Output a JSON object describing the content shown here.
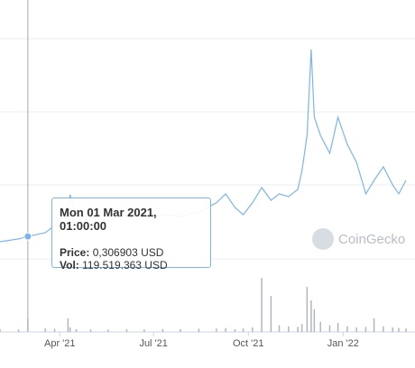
{
  "chart_data": {
    "type": "line",
    "x": [
      32,
      50,
      59,
      76,
      85,
      98,
      100,
      106,
      120,
      137,
      155,
      172,
      190,
      207,
      225,
      242,
      251,
      260,
      268,
      277,
      286,
      295,
      303,
      312,
      321,
      325,
      330,
      334,
      337,
      343,
      352,
      360,
      369,
      378,
      387,
      395,
      404,
      413,
      419,
      426
    ],
    "series": [
      {
        "color": "#7cb5ec",
        "values": [
          0.29,
          0.299,
          0.306903,
          0.319,
          0.342,
          0.394,
          0.441,
          0.371,
          0.371,
          0.357,
          0.377,
          0.371,
          0.377,
          0.371,
          0.386,
          0.415,
          0.444,
          0.4,
          0.377,
          0.415,
          0.464,
          0.423,
          0.444,
          0.435,
          0.458,
          0.516,
          0.632,
          0.908,
          0.69,
          0.632,
          0.574,
          0.69,
          0.603,
          0.545,
          0.444,
          0.487,
          0.531,
          0.473,
          0.444,
          0.487
        ]
      },
      {
        "color": "#b0b6c0",
        "axis": "y2",
        "values": [
          25000000,
          22000000,
          119519363,
          30000000,
          28000000,
          120000000,
          40000000,
          25000000,
          22000000,
          20000000,
          24000000,
          22000000,
          26000000,
          24000000,
          28000000,
          30000000,
          35000000,
          25000000,
          30000000,
          40000000,
          480000000,
          320000000,
          60000000,
          50000000,
          45000000,
          70000000,
          400000000,
          280000000,
          200000000,
          90000000,
          60000000,
          80000000,
          50000000,
          40000000,
          45000000,
          120000000,
          50000000,
          40000000,
          35000000,
          30000000
        ]
      }
    ],
    "xlim": [
      32,
      426
    ],
    "xticks": [
      {
        "value": 90,
        "label": "Apr '21"
      },
      {
        "value": 181,
        "label": "Jul '21"
      },
      {
        "value": 273,
        "label": "Oct '21"
      },
      {
        "value": 365,
        "label": "Jan '22"
      }
    ],
    "ylim": [
      0,
      1.067
    ],
    "y2lim": [
      0,
      2950000000
    ],
    "watermark": "CoinGecko",
    "tooltip": {
      "x_index": 2,
      "date": "Mon 01 Mar 2021, 01:00:00",
      "price_label": "Price:",
      "price": "0,306903 USD",
      "vol_label": "Vol:",
      "vol": "119.519.363 USD"
    }
  }
}
